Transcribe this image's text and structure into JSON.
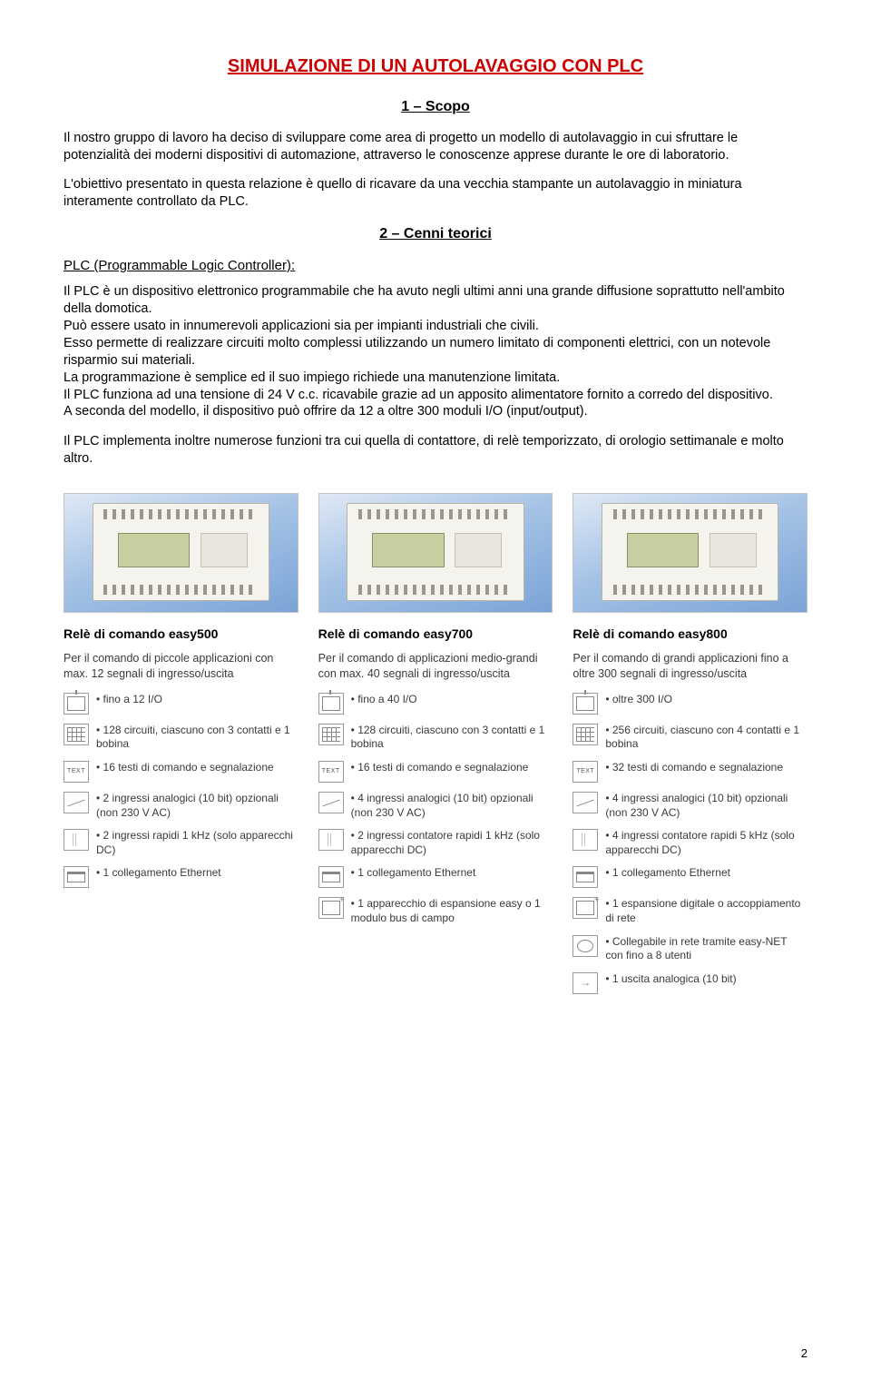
{
  "title": "SIMULAZIONE DI UN AUTOLAVAGGIO CON PLC",
  "title_color": "#cc0000",
  "section1_heading": "1 – Scopo",
  "para1": "Il nostro gruppo di lavoro ha deciso di sviluppare come area di progetto un modello di autolavaggio in cui sfruttare le potenzialità dei moderni dispositivi di automazione, attraverso le conoscenze apprese durante le ore di laboratorio.",
  "para2": "L'obiettivo presentato in questa relazione è quello di ricavare da una vecchia stampante un autolavaggio in miniatura interamente controllato da PLC.",
  "section2_heading": "2 – Cenni teorici",
  "subsection": "PLC (Programmable Logic Controller):",
  "para3": "Il PLC è un dispositivo elettronico programmabile che ha avuto negli ultimi anni una grande diffusione soprattutto nell'ambito della domotica.",
  "para4a": "Può essere usato in innumerevoli applicazioni sia per impianti industriali che civili.",
  "para4b": "Esso permette di realizzare circuiti molto complessi utilizzando un numero limitato di componenti elettrici, con un notevole risparmio sui materiali.",
  "para4c": "La programmazione è semplice ed il suo impiego richiede una manutenzione limitata.",
  "para4d": "Il PLC funziona ad una tensione di 24 V c.c. ricavabile grazie ad un apposito alimentatore fornito a corredo del dispositivo.",
  "para4e": "A seconda del modello, il dispositivo può offrire da 12 a oltre 300 moduli I/O (input/output).",
  "para5": "Il PLC implementa inoltre numerose funzioni tra cui quella di contattore, di relè temporizzato, di orologio settimanale e molto altro.",
  "products": [
    {
      "name": "Relè di comando easy500",
      "desc": "Per il comando di piccole applicazioni con max. 12 segnali di ingresso/uscita",
      "specs": [
        {
          "icon": "io",
          "text": "fino a 12 I/O"
        },
        {
          "icon": "circuit",
          "text": "128 circuiti, ciascuno con 3 contatti e 1 bobina"
        },
        {
          "icon": "text",
          "text": "16 testi di comando e segnalazione"
        },
        {
          "icon": "analog",
          "text": "2 ingressi analogici (10 bit) opzionali (non 230 V AC)"
        },
        {
          "icon": "pulse",
          "text": "2 ingressi rapidi 1 kHz (solo apparecchi DC)"
        },
        {
          "icon": "eth",
          "text": "1 collegamento Ethernet"
        }
      ]
    },
    {
      "name": "Relè di comando easy700",
      "desc": "Per il comando di applicazioni medio-grandi con max. 40 segnali di ingresso/uscita",
      "specs": [
        {
          "icon": "io",
          "text": "fino a 40 I/O"
        },
        {
          "icon": "circuit",
          "text": "128 circuiti, ciascuno con 3 contatti e 1 bobina"
        },
        {
          "icon": "text",
          "text": "16 testi di comando e segnalazione"
        },
        {
          "icon": "analog",
          "text": "4 ingressi analogici (10 bit) opzionali (non 230 V AC)"
        },
        {
          "icon": "pulse",
          "text": "2 ingressi contatore rapidi 1 kHz (solo apparecchi DC)"
        },
        {
          "icon": "eth",
          "text": "1 collegamento Ethernet"
        },
        {
          "icon": "exp",
          "text": "1 apparecchio di espansione easy o 1 modulo bus di campo"
        }
      ]
    },
    {
      "name": "Relè di comando easy800",
      "desc": "Per il comando di grandi applicazioni fino a oltre 300 segnali di ingresso/uscita",
      "specs": [
        {
          "icon": "io",
          "text": "oltre 300 I/O"
        },
        {
          "icon": "circuit",
          "text": "256 circuiti, ciascuno con 4 contatti e 1 bobina"
        },
        {
          "icon": "text",
          "text": "32 testi di comando e segnalazione"
        },
        {
          "icon": "analog",
          "text": "4 ingressi analogici (10 bit) opzionali (non 230 V AC)"
        },
        {
          "icon": "pulse",
          "text": "4 ingressi contatore rapidi 5 kHz (solo apparecchi DC)"
        },
        {
          "icon": "eth",
          "text": "1 collegamento Ethernet"
        },
        {
          "icon": "exp",
          "text": "1 espansione digitale o accoppiamento di rete"
        },
        {
          "icon": "net",
          "text": "Collegabile in rete tramite easy-NET con fino a 8 utenti"
        },
        {
          "icon": "out",
          "text": "1 uscita analogica (10 bit)"
        }
      ]
    }
  ],
  "page_number": "2"
}
